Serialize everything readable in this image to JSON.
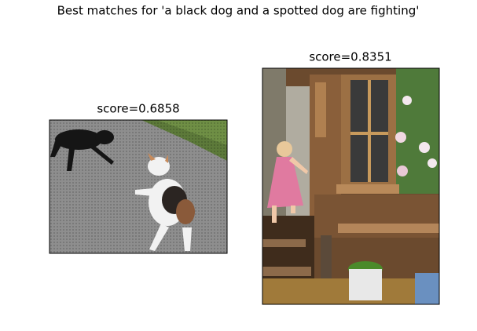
{
  "title": "Best matches for 'a black dog and a spotted dog are fighting'",
  "panels": [
    {
      "title": "score=0.6858"
    },
    {
      "title": "score=0.8351"
    }
  ]
}
